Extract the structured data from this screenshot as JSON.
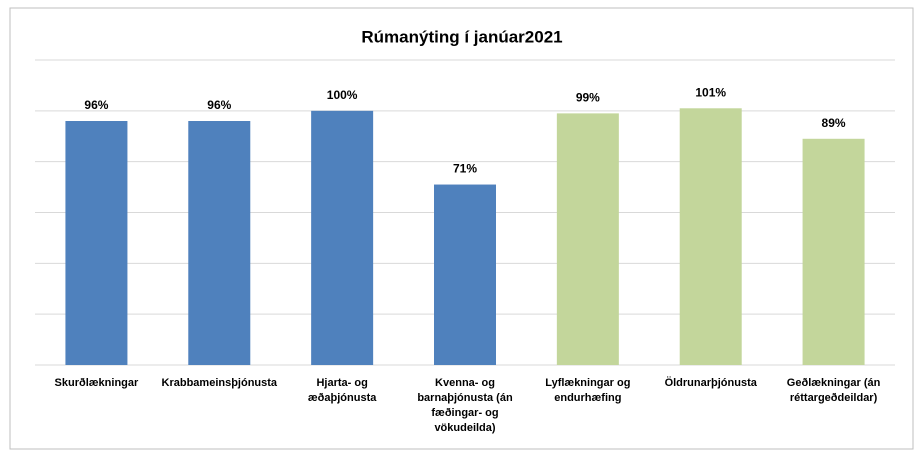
{
  "chart_data": {
    "type": "bar",
    "title": "Rúmanýting í janúar2021",
    "categories": [
      "Skurðlækningar",
      "Krabbameinsþjónusta",
      "Hjarta- og æðaþjónusta",
      "Kvenna- og barnaþjónusta (án fæðingar- og vökudeilda)",
      "Lyflækningar og endurhæfing",
      "Öldrunarþjónusta",
      "Geðlækningar (án réttargeðdeildar)"
    ],
    "values": [
      96,
      96,
      100,
      71,
      99,
      101,
      89
    ],
    "value_labels": [
      "96%",
      "96%",
      "100%",
      "71%",
      "99%",
      "101%",
      "89%"
    ],
    "colors": [
      "#4f81bd",
      "#4f81bd",
      "#4f81bd",
      "#4f81bd",
      "#c3d69b",
      "#c3d69b",
      "#c3d69b"
    ],
    "ylim": [
      0,
      120
    ],
    "yticks": [
      0,
      20,
      40,
      60,
      80,
      100,
      120
    ],
    "grid": true
  }
}
